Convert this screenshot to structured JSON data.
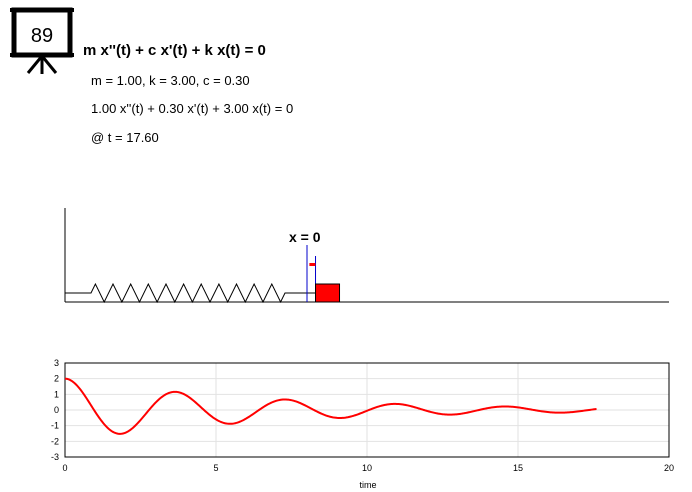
{
  "badge": {
    "number": "89"
  },
  "equation": {
    "general": "m x''(t) + c x'(t) + k x(t) = 0",
    "params": "m = 1.00, k = 3.00, c = 0.30",
    "numeric": "1.00 x''(t) + 0.30 x'(t) + 3.00 x(t) = 0",
    "time": "@ t = 17.60"
  },
  "system": {
    "x_zero_label": "x = 0",
    "m": 1.0,
    "k": 3.0,
    "c": 0.3,
    "x0": 2.0,
    "v0": 0.0,
    "t_current": 17.6,
    "mass_color": "#ff0000",
    "marker_color": "#0000cc"
  },
  "chart_data": {
    "type": "line",
    "title": "",
    "xlabel": "time",
    "ylabel": "",
    "xlim": [
      0,
      20
    ],
    "ylim": [
      -3,
      3
    ],
    "xticks": [
      0,
      5,
      10,
      15,
      20
    ],
    "yticks": [
      -3,
      -2,
      -1,
      0,
      1,
      2,
      3
    ],
    "grid": true,
    "series": [
      {
        "color": "#ff0000",
        "t_start": 0,
        "t_end": 17.6
      }
    ]
  }
}
